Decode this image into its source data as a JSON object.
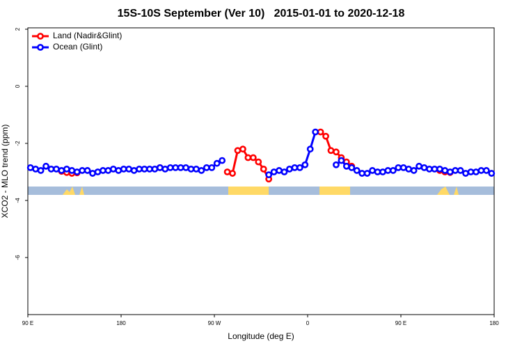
{
  "chart_data": {
    "type": "line",
    "title": "15S-10S September (Ver 10)   2015-01-01 to 2020-12-18",
    "x_label": "Longitude (deg E)",
    "y_label": "XCO2 - MLO trend (ppm)",
    "xlim": [
      90,
      540
    ],
    "ylim": [
      -8,
      2
    ],
    "xticks": [
      {
        "value": 90,
        "label": "90 E"
      },
      180,
      {
        "value": 270,
        "label": "90 W"
      },
      {
        "value": 360,
        "label": "0"
      },
      {
        "value": 450,
        "label": "90 E"
      },
      {
        "value": 540,
        "label": "180"
      }
    ],
    "yticks": [
      -6,
      -4,
      -2,
      0,
      2
    ],
    "legend": "top-left",
    "x": [
      92.5,
      97.5,
      102.5,
      107.5,
      112.5,
      117.5,
      122.5,
      127.5,
      132.5,
      137.5,
      142.5,
      147.5,
      152.5,
      157.5,
      162.5,
      167.5,
      172.5,
      177.5,
      182.5,
      187.5,
      192.5,
      197.5,
      202.5,
      207.5,
      212.5,
      217.5,
      222.5,
      227.5,
      232.5,
      237.5,
      242.5,
      247.5,
      252.5,
      257.5,
      262.5,
      267.5,
      272.5,
      277.5,
      282.5,
      287.5,
      292.5,
      297.5,
      302.5,
      307.5,
      312.5,
      317.5,
      322.5,
      327.5,
      332.5,
      337.5,
      342.5,
      347.5,
      352.5,
      357.5,
      362.5,
      367.5,
      372.5,
      377.5,
      382.5,
      387.5,
      392.5,
      397.5,
      402.5,
      407.5,
      412.5,
      417.5,
      422.5,
      427.5,
      432.5,
      437.5,
      442.5,
      447.5,
      452.5,
      457.5,
      462.5,
      467.5,
      472.5,
      477.5,
      482.5,
      487.5,
      492.5,
      497.5,
      502.5,
      507.5,
      512.5,
      517.5,
      522.5,
      527.5,
      532.5,
      537.5
    ],
    "series": [
      {
        "name": "Land (Nadir&Glint)",
        "color": "#ff0000",
        "values": [
          null,
          null,
          null,
          null,
          null,
          null,
          -2.98,
          -3.02,
          -3.05,
          -3.03,
          null,
          null,
          null,
          null,
          null,
          null,
          null,
          null,
          null,
          null,
          null,
          null,
          null,
          null,
          null,
          -2.85,
          null,
          null,
          null,
          null,
          null,
          null,
          null,
          null,
          null,
          null,
          null,
          null,
          -3.0,
          -3.05,
          -2.25,
          -2.2,
          -2.5,
          -2.5,
          -2.65,
          -2.9,
          -3.25,
          null,
          null,
          null,
          null,
          null,
          null,
          null,
          null,
          null,
          -1.6,
          -1.75,
          -2.25,
          -2.3,
          -2.5,
          -2.65,
          -2.8,
          null,
          null,
          null,
          null,
          null,
          null,
          null,
          null,
          null,
          null,
          null,
          null,
          null,
          null,
          null,
          null,
          -2.95,
          -3.0,
          -3.02,
          null,
          null,
          null,
          null,
          null,
          null,
          null,
          null
        ]
      },
      {
        "name": "Ocean (Glint)",
        "color": "#0000ff",
        "values": [
          -2.85,
          -2.9,
          -2.95,
          -2.8,
          -2.9,
          -2.9,
          -2.95,
          -2.9,
          -2.95,
          -3.0,
          -2.95,
          -2.95,
          -3.05,
          -3.0,
          -2.95,
          -2.95,
          -2.9,
          -2.95,
          -2.9,
          -2.9,
          -2.95,
          -2.9,
          -2.9,
          -2.9,
          -2.9,
          -2.85,
          -2.9,
          -2.85,
          -2.85,
          -2.85,
          -2.85,
          -2.9,
          -2.9,
          -2.95,
          -2.85,
          -2.85,
          -2.7,
          -2.6,
          null,
          null,
          null,
          null,
          null,
          null,
          null,
          null,
          -3.1,
          -3.0,
          -2.95,
          -3.0,
          -2.9,
          -2.85,
          -2.85,
          -2.75,
          -2.2,
          -1.6,
          null,
          null,
          null,
          -2.75,
          -2.6,
          -2.8,
          -2.85,
          -2.95,
          -3.05,
          -3.05,
          -2.95,
          -3.0,
          -3.0,
          -2.95,
          -2.95,
          -2.85,
          -2.85,
          -2.9,
          -2.95,
          -2.8,
          -2.85,
          -2.9,
          -2.9,
          -2.9,
          -2.95,
          -3.0,
          -2.95,
          -2.95,
          -3.05,
          -3.0,
          -3.0,
          -2.95,
          -2.95,
          -3.05
        ]
      }
    ]
  }
}
